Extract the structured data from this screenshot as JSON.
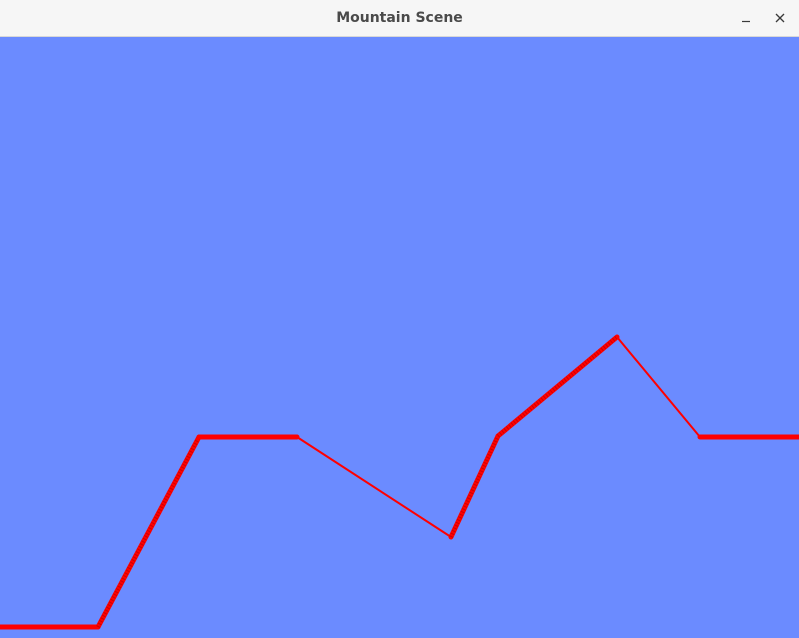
{
  "window": {
    "title": "Mountain Scene"
  },
  "controls": {
    "minimize_icon": "minimize-icon",
    "close_icon": "close-icon"
  },
  "scene": {
    "sky_color": "#6b8bff",
    "line_color": "#ff0000",
    "hatch_color": "#cc0000"
  }
}
